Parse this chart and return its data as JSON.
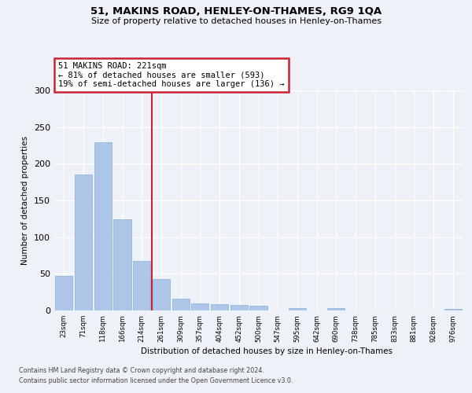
{
  "title1": "51, MAKINS ROAD, HENLEY-ON-THAMES, RG9 1QA",
  "title2": "Size of property relative to detached houses in Henley-on-Thames",
  "xlabel": "Distribution of detached houses by size in Henley-on-Thames",
  "ylabel": "Number of detached properties",
  "categories": [
    "23sqm",
    "71sqm",
    "118sqm",
    "166sqm",
    "214sqm",
    "261sqm",
    "309sqm",
    "357sqm",
    "404sqm",
    "452sqm",
    "500sqm",
    "547sqm",
    "595sqm",
    "642sqm",
    "690sqm",
    "738sqm",
    "785sqm",
    "833sqm",
    "881sqm",
    "928sqm",
    "976sqm"
  ],
  "values": [
    47,
    185,
    229,
    124,
    68,
    43,
    16,
    10,
    9,
    8,
    6,
    0,
    3,
    0,
    3,
    0,
    0,
    0,
    0,
    0,
    2
  ],
  "bar_color": "#aec6e8",
  "bar_edge_color": "#88afd4",
  "highlight_color": "#cc2233",
  "vline_index": 4,
  "annotation_line1": "51 MAKINS ROAD: 221sqm",
  "annotation_line2": "← 81% of detached houses are smaller (593)",
  "annotation_line3": "19% of semi-detached houses are larger (136) →",
  "annotation_box_edge": "#cc2233",
  "ylim": [
    0,
    300
  ],
  "yticks": [
    0,
    50,
    100,
    150,
    200,
    250,
    300
  ],
  "footnote1": "Contains HM Land Registry data © Crown copyright and database right 2024.",
  "footnote2": "Contains public sector information licensed under the Open Government Licence v3.0.",
  "bg_color": "#eef2f8",
  "grid_color": "white"
}
